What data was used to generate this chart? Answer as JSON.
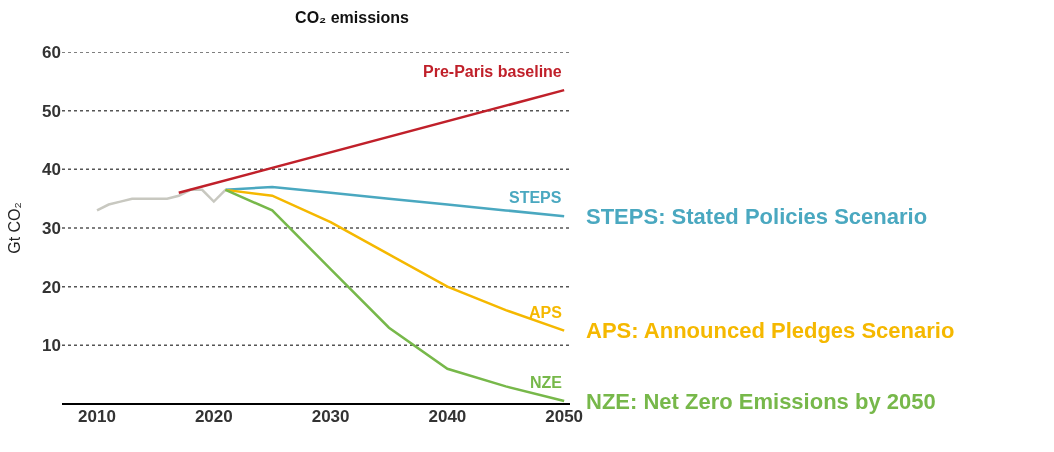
{
  "chart_data": {
    "type": "line",
    "title": "CO₂ emissions",
    "ylabel": "Gt CO₂",
    "xlim": [
      2007,
      2050.5
    ],
    "xticks": [
      2010,
      2020,
      2030,
      2040,
      2050
    ],
    "ylim": [
      0,
      60
    ],
    "yticks": [
      10,
      20,
      30,
      40,
      50,
      60
    ],
    "grid": "y",
    "legend": false,
    "marker": "none",
    "line_style": "solid",
    "series": [
      {
        "color": "#c8c8c0",
        "x": [
          2010,
          2011,
          2012,
          2013,
          2014,
          2015,
          2016,
          2017,
          2018,
          2019,
          2020,
          2021
        ],
        "values": [
          33,
          34,
          34.5,
          35,
          35,
          35,
          35,
          35.5,
          36.5,
          36.5,
          34.5,
          36.5
        ]
      },
      {
        "name": "Pre-Paris baseline",
        "color": "#c0202a",
        "x": [
          2017,
          2050
        ],
        "values": [
          36,
          53.5
        ]
      },
      {
        "name": "STEPS",
        "color": "#4aa8c0",
        "x": [
          2021,
          2025,
          2030,
          2035,
          2040,
          2045,
          2050
        ],
        "values": [
          36.5,
          37,
          36,
          35,
          34,
          33,
          32
        ]
      },
      {
        "name": "APS",
        "color": "#f5b800",
        "x": [
          2021,
          2025,
          2030,
          2035,
          2040,
          2045,
          2050
        ],
        "values": [
          36.5,
          35.5,
          31,
          25.5,
          20,
          16,
          12.5
        ]
      },
      {
        "name": "NZE",
        "color": "#77b84a",
        "x": [
          2021,
          2025,
          2030,
          2035,
          2040,
          2045,
          2050
        ],
        "values": [
          36.5,
          33,
          23,
          13,
          6,
          3,
          0.5
        ]
      }
    ],
    "annotations": [
      "STEPS: Stated Policies Scenario",
      "APS: Announced Pledges Scenario",
      "NZE: Net Zero Emissions by 2050"
    ]
  }
}
